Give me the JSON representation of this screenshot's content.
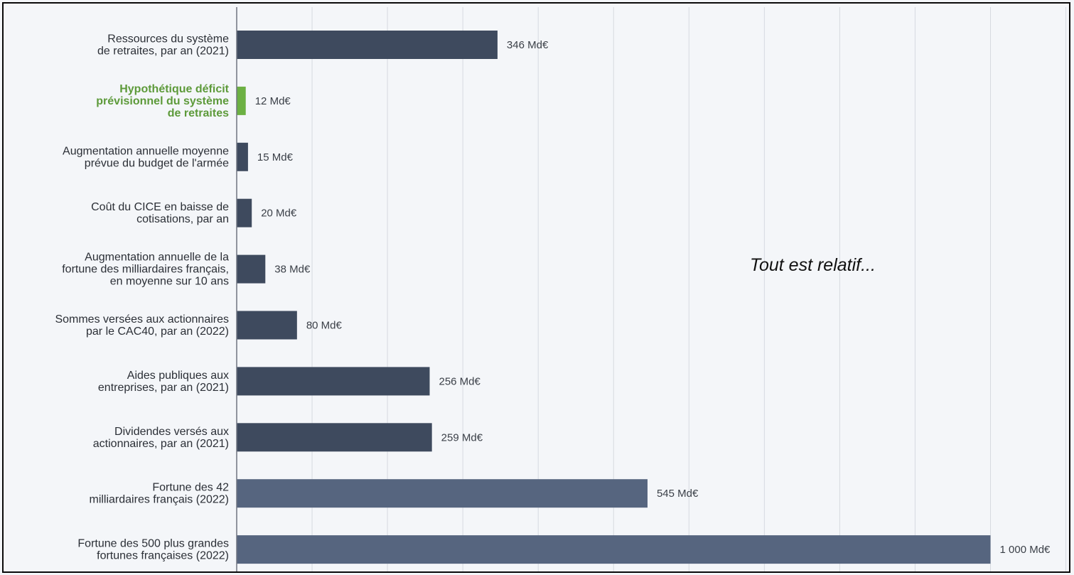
{
  "chart_data": {
    "type": "bar",
    "orientation": "horizontal",
    "categories": [
      [
        "Ressources du système",
        "de retraites, par an (2021)"
      ],
      [
        "Hypothétique déficit",
        "prévisionnel du système",
        "de retraites"
      ],
      [
        "Augmentation annuelle moyenne",
        "prévue du budget de l'armée"
      ],
      [
        "Coût du CICE en baisse de",
        "cotisations, par an"
      ],
      [
        "Augmentation annuelle de la",
        "fortune des milliardaires français,",
        "en moyenne sur 10 ans"
      ],
      [
        "Sommes versées aux actionnaires",
        "par le CAC40, par an (2022)"
      ],
      [
        "Aides publiques aux",
        "entreprises, par an (2021)"
      ],
      [
        "Dividendes versés aux",
        "actionnaires, par an (2021)"
      ],
      [
        "Fortune des 42",
        "milliardaires français (2022)"
      ],
      [
        "Fortune des 500 plus grandes",
        "fortunes françaises (2022)"
      ]
    ],
    "values": [
      346,
      12,
      15,
      20,
      38,
      80,
      256,
      259,
      545,
      1000
    ],
    "value_labels": [
      "346 Md€",
      "12 Md€",
      "15 Md€",
      "20 Md€",
      "38 Md€",
      "80 Md€",
      "256 Md€",
      "259 Md€",
      "545 Md€",
      "1 000 Md€"
    ],
    "bar_colors": [
      "#3e4a5e",
      "#6cb043",
      "#3e4a5e",
      "#3e4a5e",
      "#3e4a5e",
      "#3e4a5e",
      "#3e4a5e",
      "#3e4a5e",
      "#56657f",
      "#56657f"
    ],
    "highlighted_category_index": 1,
    "highlight_color": "#5d9a3a",
    "xlim": [
      0,
      1100
    ],
    "grid_step": 100,
    "grid": true,
    "title": "",
    "xlabel": "",
    "ylabel": ""
  },
  "annotation": "Tout est relatif..."
}
